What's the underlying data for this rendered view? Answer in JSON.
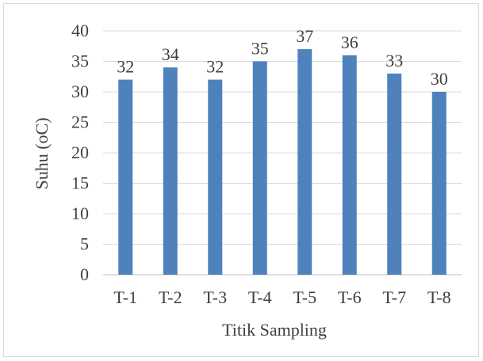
{
  "chart_data": {
    "type": "bar",
    "title": "",
    "xlabel": "Titik Sampling",
    "ylabel": "Suhu (oC)",
    "categories": [
      "T-1",
      "T-2",
      "T-3",
      "T-4",
      "T-5",
      "T-6",
      "T-7",
      "T-8"
    ],
    "values": [
      32,
      34,
      32,
      35,
      37,
      36,
      33,
      30
    ],
    "data_labels": [
      "32",
      "34",
      "32",
      "35",
      "37",
      "36",
      "33",
      "30"
    ],
    "ylim": [
      0,
      40
    ],
    "yticks": [
      "0",
      "5",
      "10",
      "15",
      "20",
      "25",
      "30",
      "35",
      "40"
    ],
    "grid": true,
    "legend": "none",
    "bar_color": "#4f81bd"
  }
}
